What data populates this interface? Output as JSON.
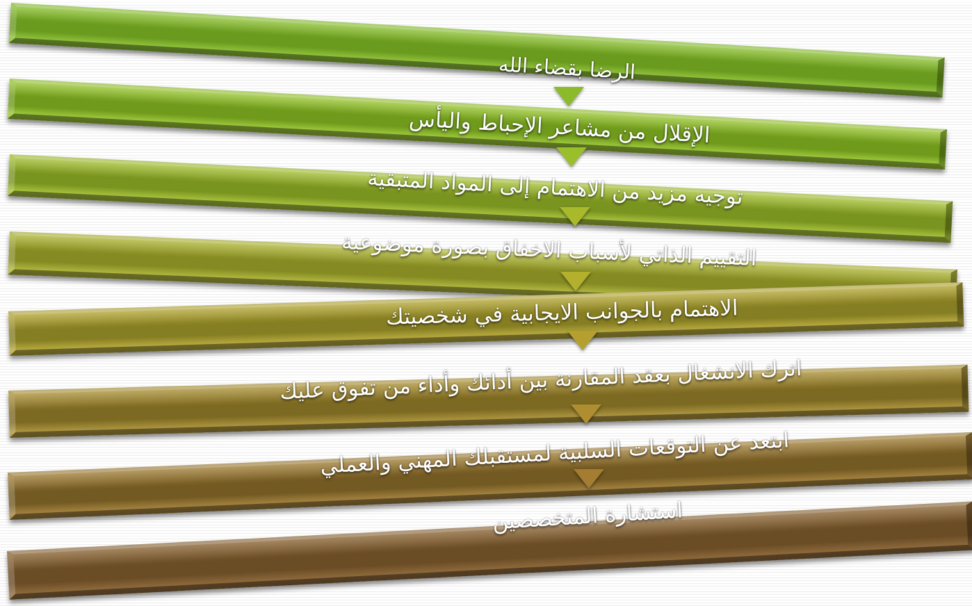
{
  "diagram": {
    "steps": [
      {
        "text": "الرضا بقضاء الله",
        "band_color": "#6a9a1e",
        "band_light": "#8fc13a",
        "arrow_color": "#8bbb2a"
      },
      {
        "text": "الإقلال من مشاعر الإحباط واليأس",
        "band_color": "#6f9a1c",
        "band_light": "#9cc63a",
        "arrow_color": "#9bbf2a"
      },
      {
        "text": "توجيه مزيد من الاهتمام إلى المواد المتبقية",
        "band_color": "#7a9420",
        "band_light": "#a6c13c",
        "arrow_color": "#a8b92c"
      },
      {
        "text": "التقييم الذاتي لأسباب الاخفاق بصورة موضوعية",
        "band_color": "#858b22",
        "band_light": "#b0b63e",
        "arrow_color": "#b3b02e"
      },
      {
        "text": "الاهتمام بالجوانب الايجابية في شخصيتك",
        "band_color": "#867e22",
        "band_light": "#b6a93f",
        "arrow_color": "#b5a02f"
      },
      {
        "text": "اترك الانشغال بعقد المقارنة بين أدائك وأداء من تفوق عليك",
        "band_color": "#7d6a22",
        "band_light": "#ad953f",
        "arrow_color": "#ae8e30"
      },
      {
        "text": "ابتعد عن التوقعات السلبية لمستقبلك المهني والعملي",
        "band_color": "#735a22",
        "band_light": "#a3823f",
        "arrow_color": "#a47c32"
      },
      {
        "text": "استشارة المتخصصين",
        "band_color": "#6a4c25",
        "band_light": "#8e6a3c",
        "arrow_color": "#8a6a3c"
      }
    ]
  }
}
